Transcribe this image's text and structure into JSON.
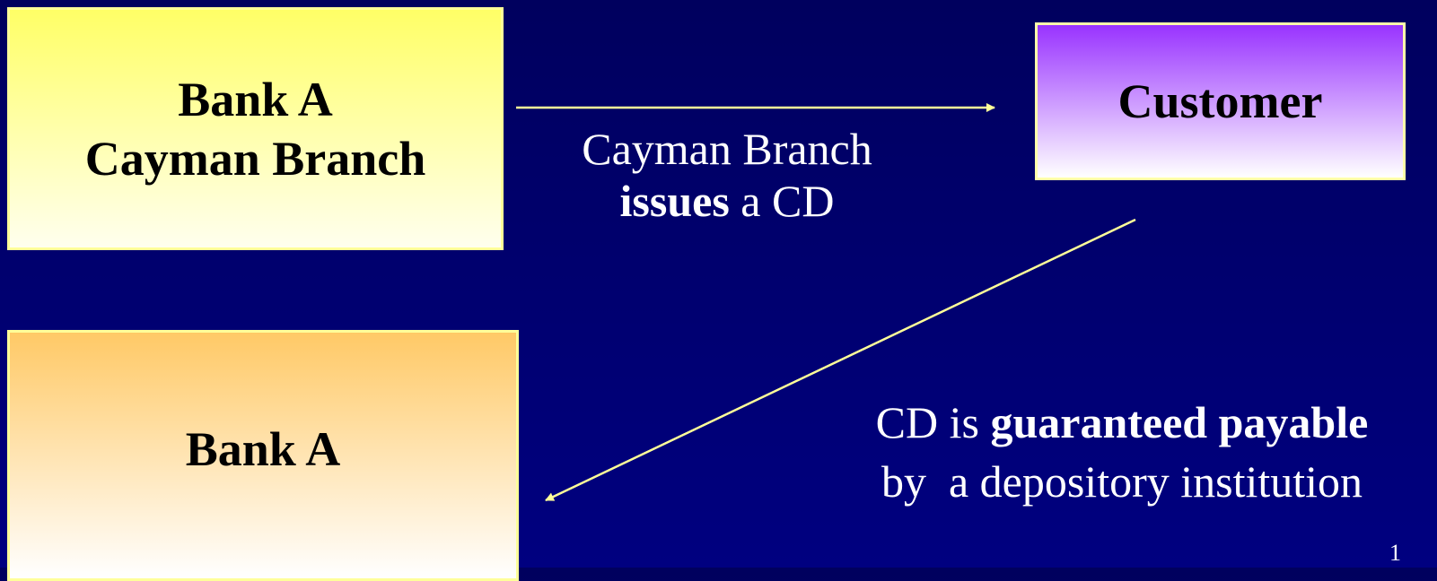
{
  "nodes": [
    {
      "label_lines": [
        "Bank A",
        "Cayman Branch"
      ]
    },
    {
      "label_lines": [
        "Customer"
      ]
    },
    {
      "label_lines": [
        "Bank A"
      ]
    }
  ],
  "edges": [
    {
      "label_lines": [
        [
          {
            "text": "Cayman Branch",
            "bold": false
          }
        ],
        [
          {
            "text": "issues",
            "bold": true
          },
          {
            "text": " a CD",
            "bold": false
          }
        ]
      ]
    },
    {
      "label_lines": [
        [
          {
            "text": "CD is ",
            "bold": false
          },
          {
            "text": "guaranteed payable",
            "bold": true
          }
        ],
        [
          {
            "text": "by  a depository institution",
            "bold": false
          }
        ]
      ]
    }
  ],
  "slide_number": "1"
}
